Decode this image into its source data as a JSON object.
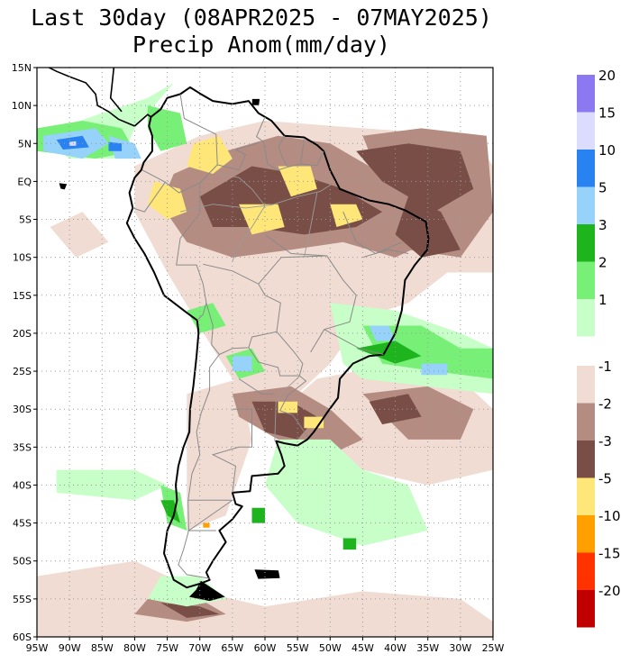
{
  "title": {
    "line1": "Last 30day (08APR2025 - 07MAY2025)",
    "line2": "Precip Anom(mm/day)"
  },
  "map": {
    "lat_labels": [
      "15N",
      "10N",
      "5N",
      "EQ",
      "5S",
      "10S",
      "15S",
      "20S",
      "25S",
      "30S",
      "35S",
      "40S",
      "45S",
      "50S",
      "55S",
      "60S"
    ],
    "lat_values": [
      15,
      10,
      5,
      0,
      -5,
      -10,
      -15,
      -20,
      -25,
      -30,
      -35,
      -40,
      -45,
      -50,
      -55,
      -60
    ],
    "lon_labels": [
      "95W",
      "90W",
      "85W",
      "80W",
      "75W",
      "70W",
      "65W",
      "60W",
      "55W",
      "50W",
      "45W",
      "40W",
      "35W",
      "30W",
      "25W"
    ],
    "lon_values": [
      -95,
      -90,
      -85,
      -80,
      -75,
      -70,
      -65,
      -60,
      -55,
      -50,
      -45,
      -40,
      -35,
      -30,
      -25
    ],
    "extent": {
      "lon_min": -95,
      "lon_max": -25,
      "lat_min": -60,
      "lat_max": 15
    },
    "grid": "dotted"
  },
  "colorbar_wet": {
    "colors": [
      "#c8ffc8",
      "#78f078",
      "#1eb41e",
      "#96d2fa",
      "#2882f0",
      "#dcdcff",
      "#8c78f0"
    ],
    "labels": [
      "1",
      "2",
      "3",
      "5",
      "10",
      "15",
      "20"
    ]
  },
  "colorbar_dry": {
    "colors": [
      "#f0dcd2",
      "#b48c82",
      "#784e46",
      "#ffe678",
      "#ffa000",
      "#ff3200",
      "#c00000"
    ],
    "labels": [
      "-1",
      "-2",
      "-3",
      "-5",
      "-10",
      "-15",
      "-20"
    ]
  },
  "anomaly_colors": {
    "dry1": "#f0dcd2",
    "dry2": "#b48c82",
    "dry3": "#784e46",
    "dry5": "#ffe678",
    "dry10": "#ffa000",
    "wet1": "#c8ffc8",
    "wet2": "#78f078",
    "wet3": "#1eb41e",
    "wet5": "#96d2fa",
    "wet10": "#2882f0",
    "wet15": "#dcdcff"
  }
}
